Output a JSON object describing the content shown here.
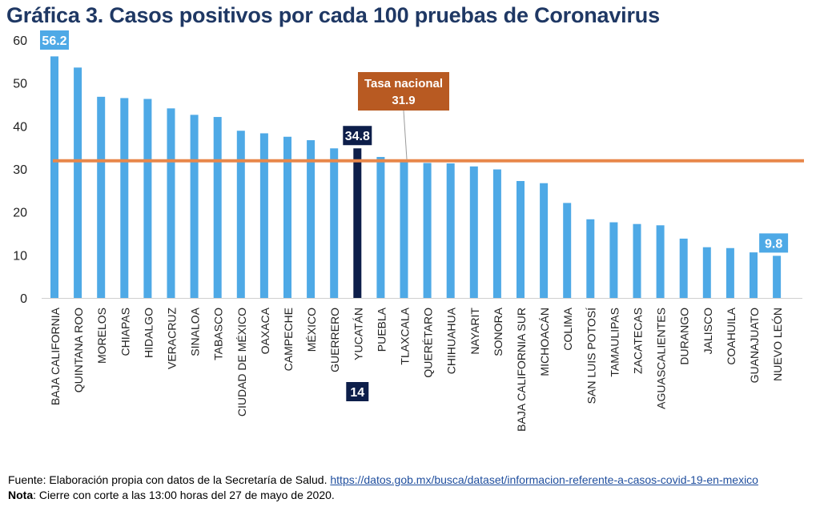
{
  "title": "Gráfica 3. Casos positivos por cada 100 pruebas de Coronavirus",
  "chart_data": {
    "type": "bar",
    "categories": [
      "BAJA CALIFORNIA",
      "QUINTANA ROO",
      "MORELOS",
      "CHIAPAS",
      "HIDALGO",
      "VERACRUZ",
      "SINALOA",
      "TABASCO",
      "CIUDAD DE MÉXICO",
      "OAXACA",
      "CAMPECHE",
      "MÉXICO",
      "GUERRERO",
      "YUCATÁN",
      "PUEBLA",
      "TLAXCALA",
      "QUERÉTARO",
      "CHIHUAHUA",
      "NAYARIT",
      "SONORA",
      "BAJA CALIFORNIA SUR",
      "MICHOACÁN",
      "COLIMA",
      "SAN LUIS POTOSÍ",
      "TAMAULIPAS",
      "ZACATECAS",
      "AGUASCALIENTES",
      "DURANGO",
      "JALISCO",
      "COAHUILA",
      "GUANAJUATO",
      "NUEVO LEÓN"
    ],
    "values": [
      56.2,
      53.6,
      46.8,
      46.5,
      46.3,
      44.1,
      42.6,
      42.1,
      38.9,
      38.3,
      37.5,
      36.7,
      34.8,
      34.8,
      32.8,
      31.6,
      31.4,
      31.3,
      30.6,
      29.9,
      27.2,
      26.7,
      22.1,
      18.3,
      17.6,
      17.2,
      16.9,
      13.8,
      11.8,
      11.6,
      10.6,
      9.8
    ],
    "highlight_category": "YUCATÁN",
    "ylim": [
      0,
      60
    ],
    "yticks": [
      0,
      10,
      20,
      30,
      40,
      50,
      60
    ],
    "grid": false,
    "reference_line": {
      "label": "Tasa nacional",
      "value": 31.9
    },
    "value_labels": [
      {
        "category": "BAJA CALIFORNIA",
        "text": "56.2"
      },
      {
        "category": "YUCATÁN",
        "text": "34.8"
      },
      {
        "category": "NUEVO LEÓN",
        "text": "9.8"
      }
    ],
    "rank_label": {
      "category": "YUCATÁN",
      "text": "14"
    },
    "colors": {
      "bar": "#4EA9E6",
      "highlight": "#0D1E4A",
      "reference": "#E8874A",
      "reference_box": "#B85A22",
      "label_box": "#4EA9E6",
      "title": "#1F3864"
    }
  },
  "footer": {
    "source_prefix": "Fuente: Elaboración propia con datos de la Secretaría de Salud. ",
    "source_url": "https://datos.gob.mx/busca/dataset/informacion-referente-a-casos-covid-19-en-mexico",
    "note_label": "Nota",
    "note_text": ": Cierre con corte a las 13:00 horas del 27 de mayo de 2020."
  }
}
